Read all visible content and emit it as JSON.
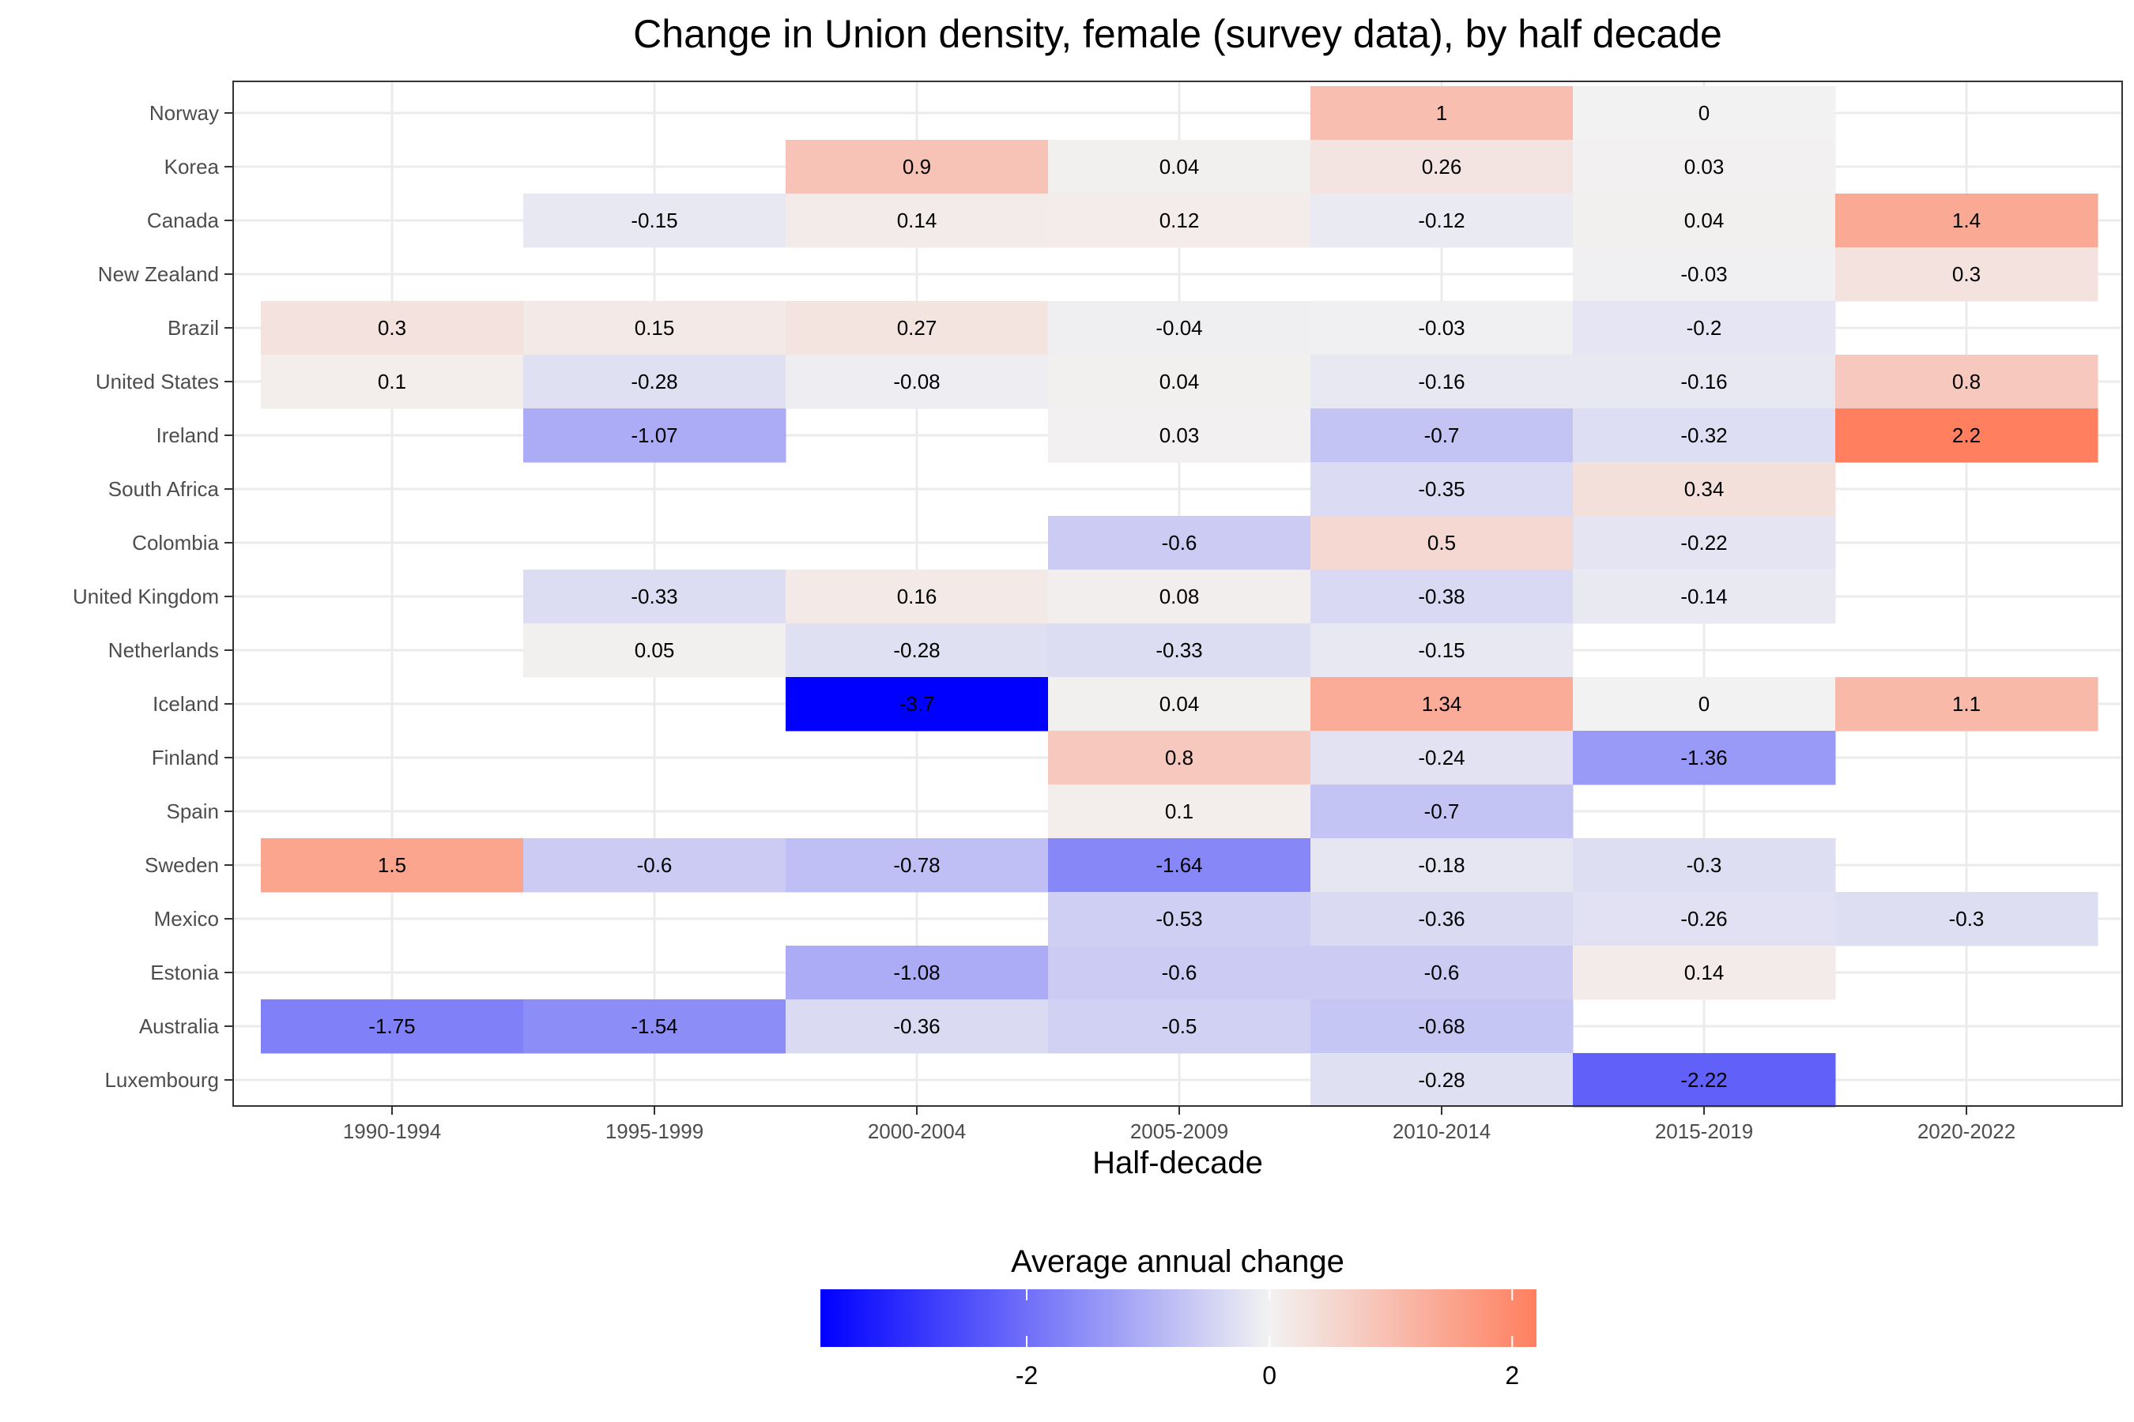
{
  "chart_data": {
    "type": "heatmap",
    "title": "Change in Union density, female (survey data), by half decade",
    "xlabel": "Half-decade",
    "ylabel": "",
    "x": [
      "1990-1994",
      "1995-1999",
      "2000-2004",
      "2005-2009",
      "2010-2014",
      "2015-2019",
      "2020-2022"
    ],
    "y": [
      "Norway",
      "Korea",
      "Canada",
      "New Zealand",
      "Brazil",
      "United States",
      "Ireland",
      "South Africa",
      "Colombia",
      "United Kingdom",
      "Netherlands",
      "Iceland",
      "Finland",
      "Spain",
      "Sweden",
      "Mexico",
      "Estonia",
      "Australia",
      "Luxembourg"
    ],
    "values": [
      [
        null,
        null,
        null,
        null,
        1,
        0,
        null
      ],
      [
        null,
        null,
        0.9,
        0.04,
        0.26,
        0.03,
        null
      ],
      [
        null,
        -0.15,
        0.14,
        0.12,
        -0.12,
        0.04,
        1.4
      ],
      [
        null,
        null,
        null,
        null,
        null,
        -0.03,
        0.3
      ],
      [
        0.3,
        0.15,
        0.27,
        -0.04,
        -0.03,
        -0.2,
        null
      ],
      [
        0.1,
        -0.28,
        -0.08,
        0.04,
        -0.16,
        -0.16,
        0.8
      ],
      [
        null,
        -1.07,
        null,
        0.03,
        -0.7,
        -0.32,
        2.2
      ],
      [
        null,
        null,
        null,
        null,
        -0.35,
        0.34,
        null
      ],
      [
        null,
        null,
        null,
        -0.6,
        0.5,
        -0.22,
        null
      ],
      [
        null,
        -0.33,
        0.16,
        0.08,
        -0.38,
        -0.14,
        null
      ],
      [
        null,
        0.05,
        -0.28,
        -0.33,
        -0.15,
        null,
        null
      ],
      [
        null,
        null,
        -3.7,
        0.04,
        1.34,
        0,
        1.1
      ],
      [
        null,
        null,
        null,
        0.8,
        -0.24,
        -1.36,
        null
      ],
      [
        null,
        null,
        null,
        0.1,
        -0.7,
        null,
        null
      ],
      [
        1.5,
        -0.6,
        -0.78,
        -1.64,
        -0.18,
        -0.3,
        null
      ],
      [
        null,
        null,
        null,
        -0.53,
        -0.36,
        -0.26,
        -0.3
      ],
      [
        null,
        null,
        -1.08,
        -0.6,
        -0.6,
        0.14,
        null
      ],
      [
        -1.75,
        -1.54,
        -0.36,
        -0.5,
        -0.68,
        null,
        null
      ],
      [
        null,
        null,
        null,
        null,
        -0.28,
        -2.22,
        null
      ]
    ],
    "legend": {
      "title": "Average annual change",
      "position": "bottom",
      "range": [
        -3.7,
        2.2
      ],
      "ticks": [
        -2,
        0,
        2
      ],
      "low_color": "#0000ff",
      "mid_color": "#f2f2f2",
      "high_color": "#ff7f5f"
    },
    "grid": true
  }
}
